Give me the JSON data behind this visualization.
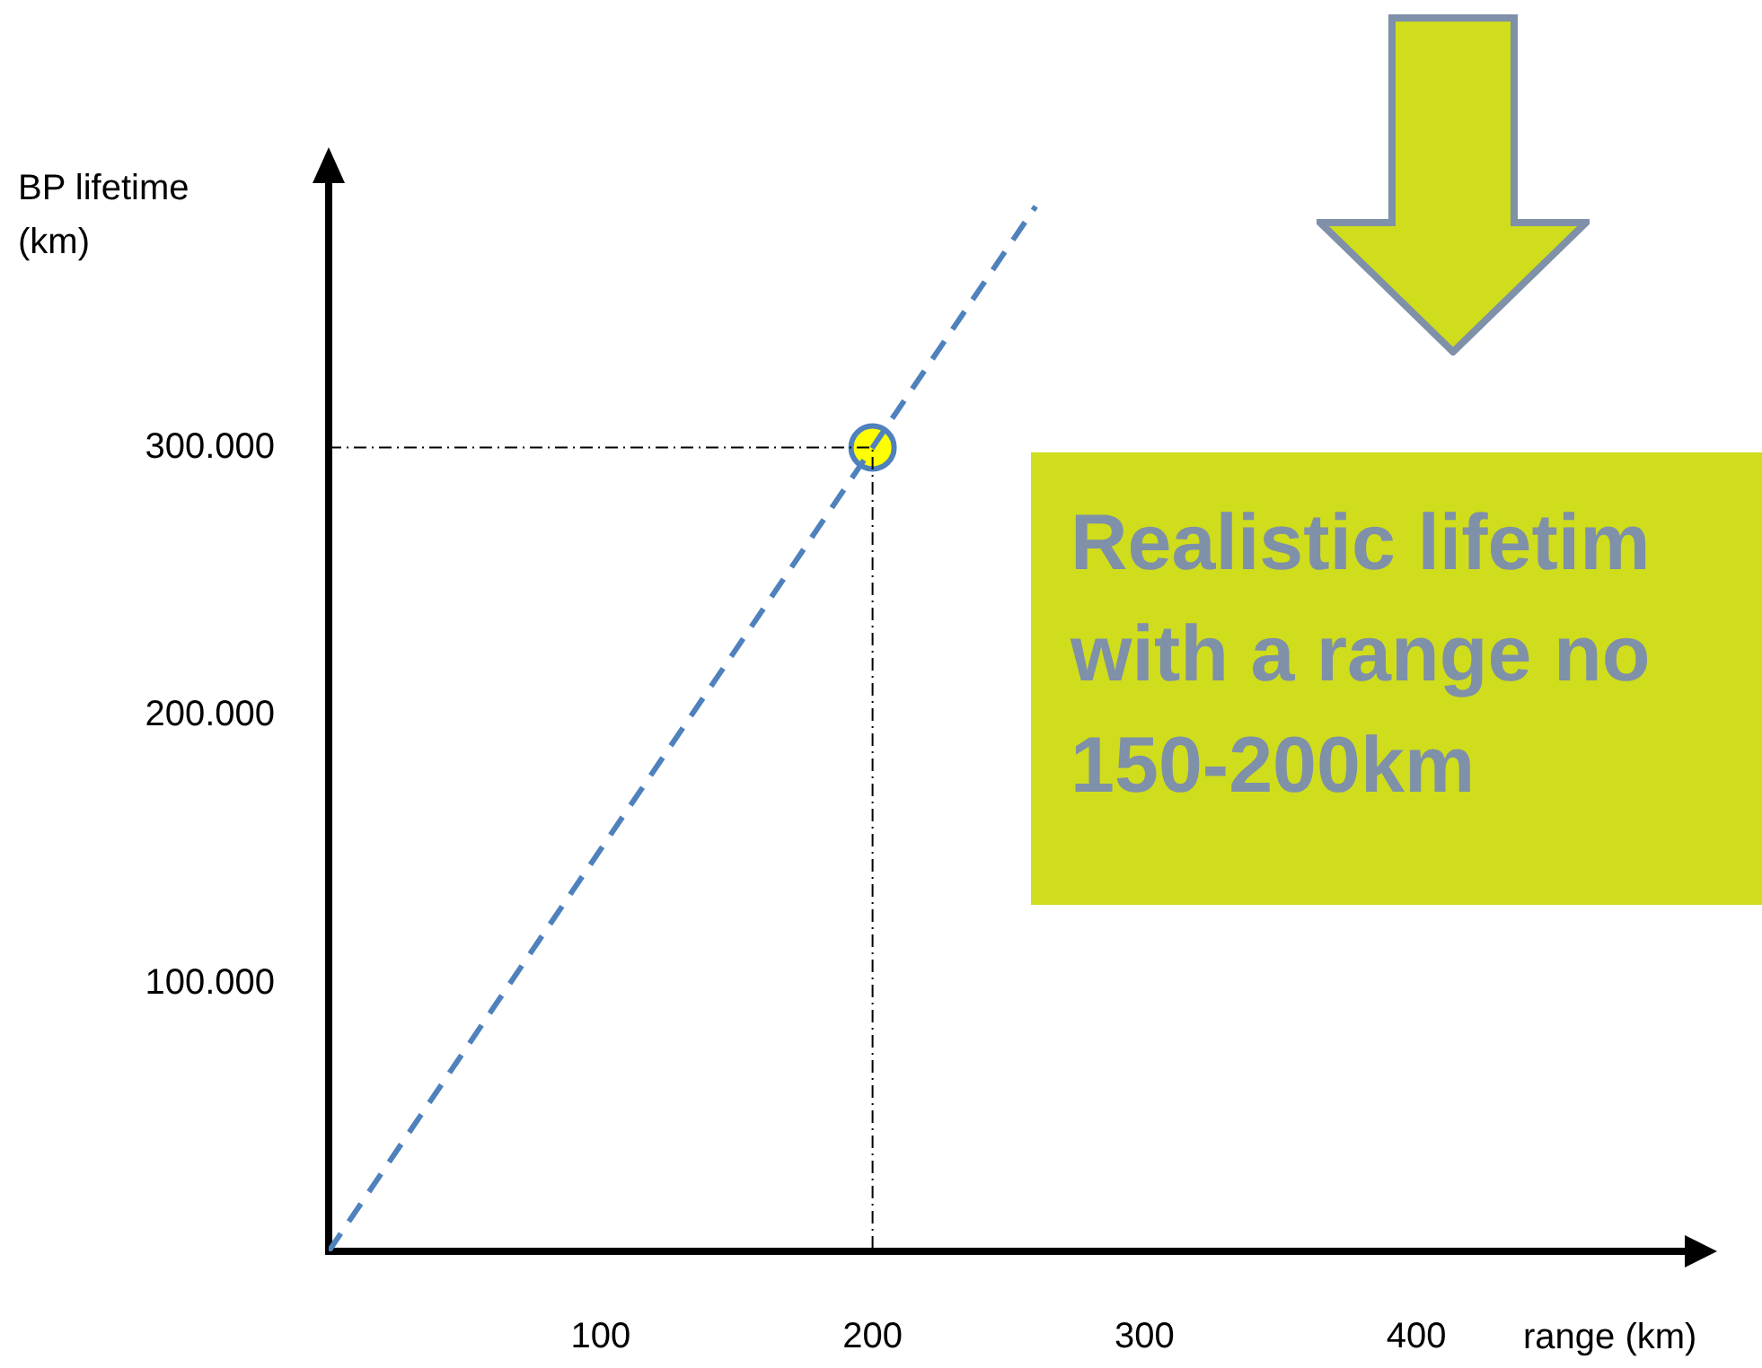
{
  "chart_data": {
    "type": "line",
    "xlabel": "range (km)",
    "ylabel": "BP lifetime\n(km)",
    "xlim": [
      0,
      500
    ],
    "ylim": [
      0,
      400000
    ],
    "xticks": [
      100,
      200,
      300,
      400
    ],
    "yticks": [
      {
        "value": 100000,
        "label": "100.000"
      },
      {
        "value": 200000,
        "label": "200.000"
      },
      {
        "value": 300000,
        "label": "300.000"
      }
    ],
    "grid": false,
    "legend": false,
    "series": [
      {
        "type": "line",
        "color": "#4f81bd",
        "line_style": "dashed",
        "marker": "none",
        "x": [
          0,
          260
        ],
        "values": [
          0,
          390000
        ]
      },
      {
        "type": "line",
        "color": "#000000",
        "line_style": "dotted",
        "marker": "none",
        "x": [
          0,
          200,
          200
        ],
        "values": [
          300000,
          300000,
          0
        ]
      },
      {
        "type": "scatter",
        "color": "#ffff00",
        "marker": "circle",
        "x": [
          200
        ],
        "values": [
          300000
        ]
      }
    ],
    "annotations": [
      "Realistic lifetim",
      "with a range no",
      "150-200km"
    ]
  }
}
